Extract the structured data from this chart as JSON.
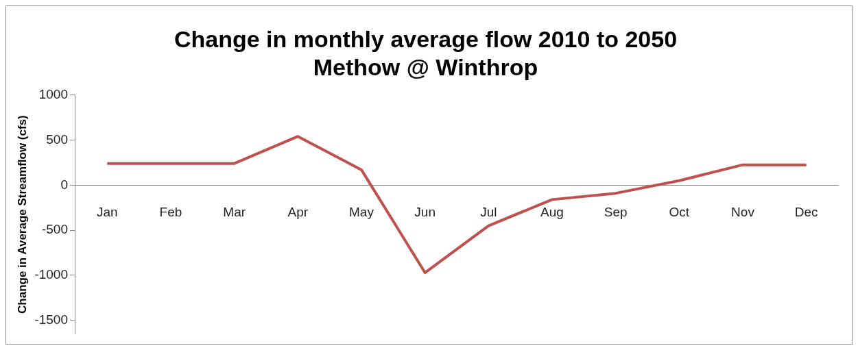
{
  "chart_data": {
    "type": "line",
    "title": "Change in monthly average flow 2010 to 2050\nMethow @ Winthrop",
    "ylabel": "Change in Average Streamflow (cfs)",
    "categories": [
      "Jan",
      "Feb",
      "Mar",
      "Apr",
      "May",
      "Jun",
      "Jul",
      "Aug",
      "Sep",
      "Oct",
      "Nov",
      "Dec"
    ],
    "series": [
      {
        "color": "#c0504d",
        "values": [
          240,
          240,
          240,
          540,
          170,
          -970,
          -450,
          -160,
          -90,
          50,
          225,
          225
        ]
      }
    ],
    "ylim": [
      -1650,
      1000
    ],
    "yticks": [
      -1500,
      -1000,
      -500,
      0,
      500,
      1000
    ],
    "grid": false,
    "legend": false,
    "marker": "none",
    "line_style": "solid"
  }
}
